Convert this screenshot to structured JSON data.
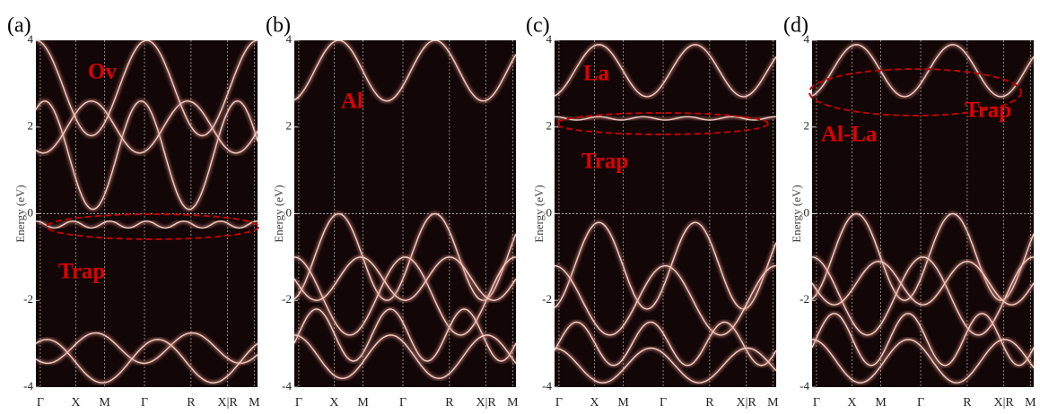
{
  "chart_data": [
    {
      "type": "band-structure",
      "panel_label": "(a)",
      "y_label": "Energy (eV)",
      "ylim": [
        -4,
        4
      ],
      "yticks": [
        -4,
        -2,
        0,
        2,
        4
      ],
      "categories": [
        "Γ",
        "X",
        "M",
        "Γ",
        "R",
        "X|R",
        "M"
      ],
      "annotations": [
        "Ov",
        "Trap"
      ]
    },
    {
      "type": "band-structure",
      "panel_label": "(b)",
      "y_label": "Energy (eV)",
      "ylim": [
        -4,
        4
      ],
      "yticks": [
        -4,
        -2,
        0,
        2,
        4
      ],
      "categories": [
        "Γ",
        "X",
        "M",
        "Γ",
        "R",
        "X|R",
        "M"
      ],
      "annotations": [
        "Al"
      ]
    },
    {
      "type": "band-structure",
      "panel_label": "(c)",
      "y_label": "Energy (eV)",
      "ylim": [
        -4,
        4
      ],
      "yticks": [
        -4,
        -2,
        0,
        2,
        4
      ],
      "categories": [
        "Γ",
        "X",
        "M",
        "Γ",
        "R",
        "X|R",
        "M"
      ],
      "annotations": [
        "La",
        "Trap"
      ]
    },
    {
      "type": "band-structure",
      "panel_label": "(d)",
      "y_label": "Energy (eV)",
      "ylim": [
        -4,
        4
      ],
      "yticks": [
        -4,
        -2,
        0,
        2,
        4
      ],
      "categories": [
        "Γ",
        "X",
        "M",
        "Γ",
        "R",
        "X|R",
        "M"
      ],
      "annotations": [
        "Al-La",
        "Trap"
      ]
    }
  ]
}
